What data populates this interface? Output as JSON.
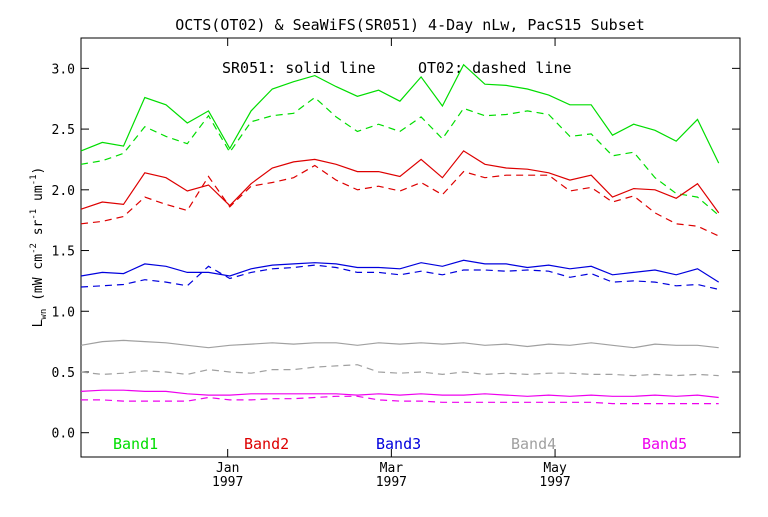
{
  "chart_data": {
    "type": "line",
    "title": "OCTS(OT02) & SeaWiFS(SR051) 4-Day nLw, PacS15 Subset",
    "annotations": [
      "SR051: solid line",
      "OT02: dashed line"
    ],
    "ylabel_main": "L",
    "ylabel_sub": "wn",
    "ylabel_rest_a": " (mW cm",
    "ylabel_sup_a": "-2",
    "ylabel_rest_b": " sr",
    "ylabel_sup_b": "-1",
    "ylabel_rest_c": " um",
    "ylabel_sup_c": "-1",
    "ylabel_close": ")",
    "ylim": [
      -0.2,
      3.25
    ],
    "yticks": [
      0.0,
      0.5,
      1.0,
      1.5,
      2.0,
      2.5,
      3.0
    ],
    "ytick_labels": [
      "0.0",
      "0.5",
      "1.0",
      "1.5",
      "2.0",
      "2.5",
      "3.0"
    ],
    "xlim_index": [
      0,
      31
    ],
    "xticks": [
      {
        "at": 6.9,
        "month": "Jan",
        "year": "1997"
      },
      {
        "at": 14.6,
        "month": "Mar",
        "year": "1997"
      },
      {
        "at": 22.3,
        "month": "May",
        "year": "1997"
      }
    ],
    "grid": false,
    "legend_position": "bottom",
    "series": [
      {
        "name": "Band1",
        "color": "#00dd00",
        "style": "solid",
        "values": [
          2.32,
          2.39,
          2.36,
          2.76,
          2.7,
          2.55,
          2.65,
          2.34,
          2.65,
          2.83,
          2.89,
          2.94,
          2.85,
          2.77,
          2.82,
          2.73,
          2.93,
          2.69,
          3.03,
          2.87,
          2.86,
          2.83,
          2.78,
          2.7,
          2.7,
          2.45,
          2.54,
          2.49,
          2.4,
          2.58,
          2.22
        ]
      },
      {
        "name": "Band1 OT02",
        "color": "#00dd00",
        "style": "dashed",
        "values": [
          2.21,
          2.24,
          2.3,
          2.52,
          2.44,
          2.38,
          2.61,
          2.31,
          2.56,
          2.61,
          2.63,
          2.76,
          2.6,
          2.48,
          2.54,
          2.48,
          2.6,
          2.42,
          2.67,
          2.61,
          2.62,
          2.65,
          2.62,
          2.44,
          2.46,
          2.28,
          2.31,
          2.1,
          1.97,
          1.94,
          1.79
        ]
      },
      {
        "name": "Band2",
        "color": "#dd0000",
        "style": "solid",
        "values": [
          1.84,
          1.9,
          1.88,
          2.14,
          2.1,
          1.99,
          2.04,
          1.87,
          2.05,
          2.18,
          2.23,
          2.25,
          2.21,
          2.15,
          2.15,
          2.11,
          2.25,
          2.1,
          2.32,
          2.21,
          2.18,
          2.17,
          2.14,
          2.08,
          2.12,
          1.94,
          2.01,
          2.0,
          1.93,
          2.05,
          1.81
        ]
      },
      {
        "name": "Band2 OT02",
        "color": "#dd0000",
        "style": "dashed",
        "values": [
          1.72,
          1.74,
          1.78,
          1.94,
          1.88,
          1.83,
          2.11,
          1.86,
          2.03,
          2.06,
          2.1,
          2.2,
          2.08,
          2.0,
          2.03,
          1.99,
          2.06,
          1.96,
          2.15,
          2.1,
          2.12,
          2.12,
          2.12,
          1.99,
          2.02,
          1.9,
          1.95,
          1.81,
          1.72,
          1.7,
          1.62
        ]
      },
      {
        "name": "Band3",
        "color": "#0000dd",
        "style": "solid",
        "values": [
          1.29,
          1.32,
          1.31,
          1.39,
          1.37,
          1.32,
          1.32,
          1.29,
          1.35,
          1.38,
          1.39,
          1.4,
          1.39,
          1.36,
          1.36,
          1.35,
          1.4,
          1.37,
          1.42,
          1.39,
          1.39,
          1.36,
          1.38,
          1.35,
          1.37,
          1.3,
          1.32,
          1.34,
          1.3,
          1.35,
          1.24
        ]
      },
      {
        "name": "Band3 OT02",
        "color": "#0000dd",
        "style": "dashed",
        "values": [
          1.2,
          1.21,
          1.22,
          1.26,
          1.24,
          1.21,
          1.37,
          1.27,
          1.32,
          1.35,
          1.36,
          1.38,
          1.36,
          1.32,
          1.32,
          1.3,
          1.33,
          1.3,
          1.34,
          1.34,
          1.33,
          1.34,
          1.33,
          1.28,
          1.31,
          1.24,
          1.25,
          1.24,
          1.21,
          1.22,
          1.18
        ]
      },
      {
        "name": "Band4",
        "color": "#a0a0a0",
        "style": "solid",
        "values": [
          0.72,
          0.75,
          0.76,
          0.75,
          0.74,
          0.72,
          0.7,
          0.72,
          0.73,
          0.74,
          0.73,
          0.74,
          0.74,
          0.72,
          0.74,
          0.73,
          0.74,
          0.73,
          0.74,
          0.72,
          0.73,
          0.71,
          0.73,
          0.72,
          0.74,
          0.72,
          0.7,
          0.73,
          0.72,
          0.72,
          0.7
        ]
      },
      {
        "name": "Band4 OT02",
        "color": "#a0a0a0",
        "style": "dashed",
        "values": [
          0.5,
          0.48,
          0.49,
          0.51,
          0.5,
          0.48,
          0.52,
          0.5,
          0.49,
          0.52,
          0.52,
          0.54,
          0.55,
          0.56,
          0.5,
          0.49,
          0.5,
          0.48,
          0.5,
          0.48,
          0.49,
          0.48,
          0.49,
          0.49,
          0.48,
          0.48,
          0.47,
          0.48,
          0.47,
          0.48,
          0.47
        ]
      },
      {
        "name": "Band5",
        "color": "#ee00ee",
        "style": "solid",
        "values": [
          0.34,
          0.35,
          0.35,
          0.34,
          0.34,
          0.32,
          0.31,
          0.31,
          0.32,
          0.32,
          0.32,
          0.32,
          0.32,
          0.31,
          0.32,
          0.31,
          0.32,
          0.31,
          0.31,
          0.32,
          0.31,
          0.3,
          0.31,
          0.3,
          0.31,
          0.3,
          0.3,
          0.31,
          0.3,
          0.31,
          0.29
        ]
      },
      {
        "name": "Band5 OT02",
        "color": "#ee00ee",
        "style": "dashed",
        "values": [
          0.27,
          0.27,
          0.26,
          0.26,
          0.26,
          0.26,
          0.29,
          0.27,
          0.27,
          0.28,
          0.28,
          0.29,
          0.3,
          0.3,
          0.27,
          0.26,
          0.26,
          0.25,
          0.25,
          0.25,
          0.25,
          0.25,
          0.25,
          0.25,
          0.25,
          0.24,
          0.24,
          0.24,
          0.24,
          0.24,
          0.24
        ]
      }
    ],
    "legend": [
      {
        "label": "Band1",
        "color": "#00dd00"
      },
      {
        "label": "Band2",
        "color": "#dd0000"
      },
      {
        "label": "Band3",
        "color": "#0000dd"
      },
      {
        "label": "Band4",
        "color": "#a0a0a0"
      },
      {
        "label": "Band5",
        "color": "#ee00ee"
      }
    ]
  }
}
